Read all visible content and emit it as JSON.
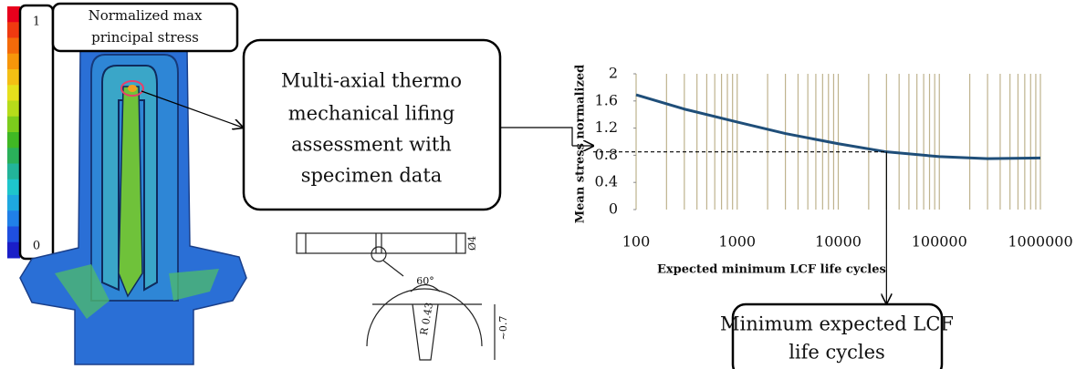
{
  "colorbar": {
    "max": "1",
    "min": "0"
  },
  "callout": {
    "lines": [
      "Normalized max",
      "principal stress"
    ]
  },
  "assessment_box": {
    "lines": [
      "Multi-axial thermo",
      "mechanical lifing",
      "assessment with",
      "specimen data"
    ]
  },
  "result_box": {
    "lines": [
      "Minimum expected LCF",
      "life cycles"
    ]
  },
  "specimen": {
    "angle": "60°",
    "radius": "R 0.43",
    "diameter": "Ø4",
    "depth": "~0.7"
  },
  "chart_data": {
    "type": "line",
    "x_label": "Expected minimum LCF life cycles",
    "y_label": "Mean stress normalized",
    "x": [
      100,
      300,
      1000,
      3000,
      10000,
      30000,
      100000,
      300000,
      1000000
    ],
    "values": [
      1.69,
      1.48,
      1.29,
      1.12,
      0.97,
      0.85,
      0.78,
      0.75,
      0.76
    ],
    "color": "#1f4e79",
    "x_log": true,
    "xlim": [
      100,
      1000000
    ],
    "xticks": [
      100,
      1000,
      10000,
      100000,
      1000000
    ],
    "ylim": [
      0,
      2
    ],
    "yticks": [
      0,
      0.4,
      0.8,
      1.2,
      1.6,
      2
    ],
    "grid": true,
    "grid_color": "#bfb38e",
    "marker": {
      "x": 30000,
      "y": 0.85
    }
  }
}
